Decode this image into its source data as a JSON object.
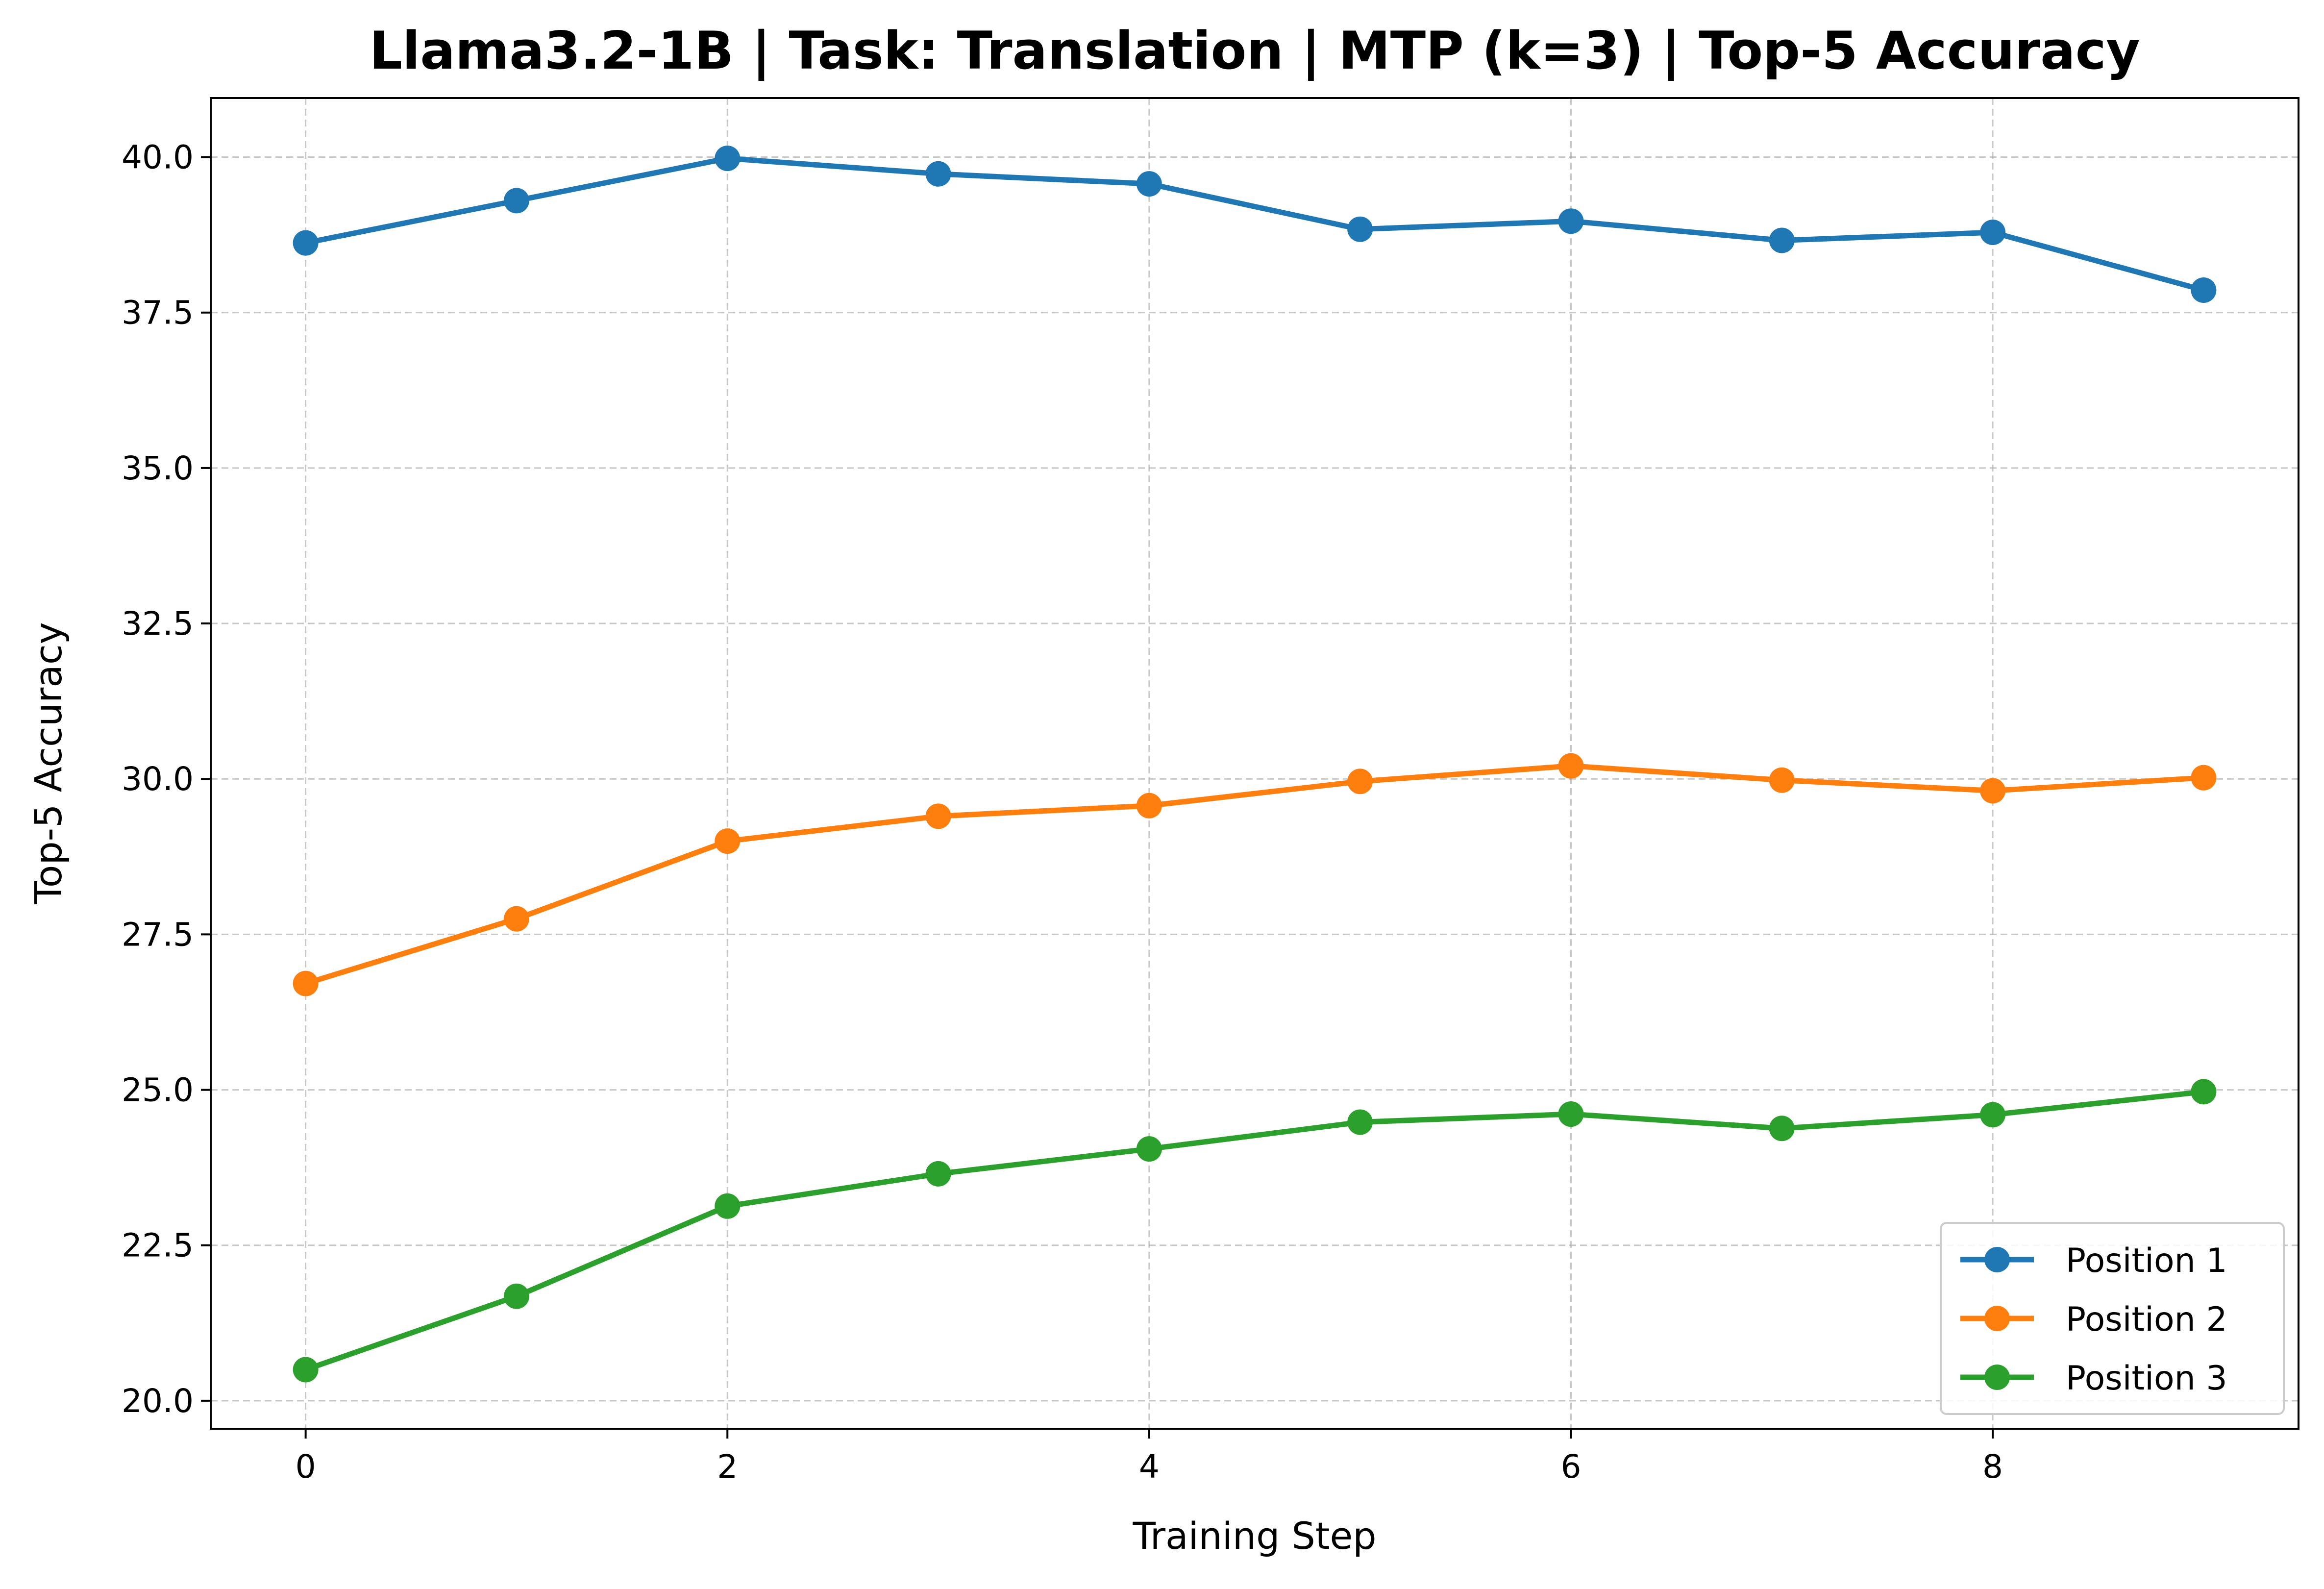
{
  "chart_data": {
    "type": "line",
    "title": "Llama3.2-1B | Task: Translation | MTP (k=3) | Top-5 Accuracy",
    "xlabel": "Training Step",
    "ylabel": "Top-5 Accuracy",
    "x": [
      0,
      1,
      2,
      3,
      4,
      5,
      6,
      7,
      8,
      9
    ],
    "xlim": [
      -0.45,
      9.45
    ],
    "ylim": [
      19.55,
      40.95
    ],
    "xticks": [
      "0",
      "2",
      "4",
      "6",
      "8"
    ],
    "yticks": [
      "20.0",
      "22.5",
      "25.0",
      "27.5",
      "30.0",
      "32.5",
      "35.0",
      "37.5",
      "40.0"
    ],
    "grid": true,
    "legend_position": "lower-right",
    "series": [
      {
        "name": "Position 1",
        "color": "#1f77b4",
        "values": [
          38.62,
          39.3,
          39.98,
          39.73,
          39.57,
          38.84,
          38.97,
          38.66,
          38.79,
          37.86
        ]
      },
      {
        "name": "Position 2",
        "color": "#ff7f0e",
        "values": [
          26.71,
          27.75,
          29.0,
          29.4,
          29.57,
          29.96,
          30.21,
          29.98,
          29.81,
          30.02
        ]
      },
      {
        "name": "Position 3",
        "color": "#2ca02c",
        "values": [
          20.5,
          21.68,
          23.13,
          23.65,
          24.05,
          24.48,
          24.61,
          24.38,
          24.6,
          24.97
        ]
      }
    ]
  }
}
